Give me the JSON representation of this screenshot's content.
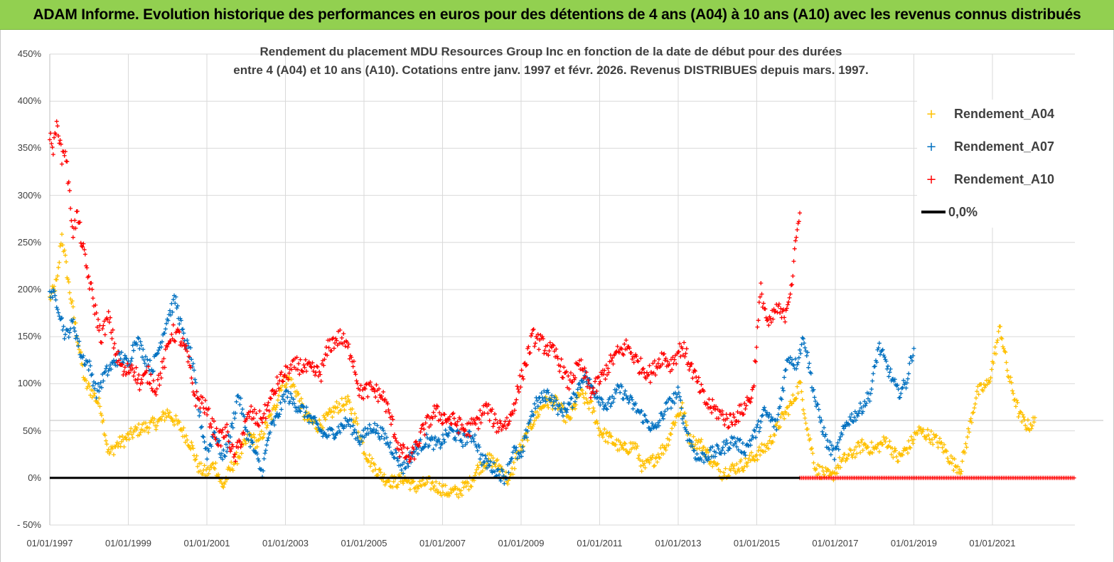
{
  "banner": {
    "title": "ADAM Informe. Evolution historique des performances en euros pour des détentions de 4 ans (A04) à 10 ans (A10) avec les revenus connus distribués"
  },
  "colors": {
    "banner_bg": "#92d050",
    "A04": "#ffc000",
    "A07": "#0070c0",
    "A10": "#ff0000",
    "zero": "#000000",
    "grid": "#d9d9d9"
  },
  "chart_data": {
    "type": "scatter",
    "title_line1": "Rendement du placement MDU Resources Group Inc en fonction de la date de début pour des durées",
    "title_line2": "entre 4 (A04) et 10 ans (A10).  Cotations entre janv. 1997 et févr. 2026. Revenus  DISTRIBUES depuis mars. 1997.",
    "xlabel": "",
    "ylabel": "",
    "xlim": [
      1997.0,
      2023.1
    ],
    "ylim": [
      -50,
      450
    ],
    "yticks": [
      -50,
      0,
      50,
      100,
      150,
      200,
      250,
      300,
      350,
      400,
      450
    ],
    "ytick_labels": [
      "- 50%",
      "0%",
      "50%",
      "100%",
      "150%",
      "200%",
      "250%",
      "300%",
      "350%",
      "400%",
      "450%"
    ],
    "xticks": [
      1997,
      1999,
      2001,
      2003,
      2005,
      2007,
      2009,
      2011,
      2013,
      2015,
      2017,
      2019,
      2021
    ],
    "xtick_labels": [
      "01/01/1997",
      "01/01/1999",
      "01/01/2001",
      "01/01/2003",
      "01/01/2005",
      "01/01/2007",
      "01/01/2009",
      "01/01/2011",
      "01/01/2013",
      "01/01/2015",
      "01/01/2017",
      "01/01/2019",
      "01/01/2021"
    ],
    "legend_position": "top-right",
    "series": [
      {
        "name": "Rendement_A04",
        "color": "#ffc000",
        "x": [
          1997.0,
          1997.2,
          1997.3,
          1997.5,
          1997.7,
          1997.9,
          1998.1,
          1998.3,
          1998.5,
          1998.7,
          1998.9,
          1999.2,
          1999.5,
          1999.8,
          2000.0,
          2000.3,
          2000.6,
          2000.8,
          2001.0,
          2001.2,
          2001.4,
          2001.6,
          2001.9,
          2002.1,
          2002.3,
          2002.5,
          2002.7,
          2002.9,
          2003.1,
          2003.3,
          2003.5,
          2003.8,
          2004.0,
          2004.3,
          2004.6,
          2004.8,
          2005.0,
          2005.2,
          2005.5,
          2005.8,
          2006.0,
          2006.3,
          2006.6,
          2006.9,
          2007.1,
          2007.4,
          2007.7,
          2007.9,
          2008.2,
          2008.5,
          2008.7,
          2008.9,
          2009.1,
          2009.3,
          2009.6,
          2009.9,
          2010.2,
          2010.5,
          2010.8,
          2011.0,
          2011.3,
          2011.6,
          2011.9,
          2012.1,
          2012.4,
          2012.7,
          2012.9,
          2013.1,
          2013.3,
          2013.6,
          2013.9,
          2014.1,
          2014.4,
          2014.7,
          2015.0,
          2015.3,
          2015.6,
          2015.9,
          2016.1,
          2016.3,
          2016.5,
          2016.7,
          2016.9,
          2017.1,
          2017.4,
          2017.7,
          2018.0,
          2018.3,
          2018.6,
          2018.9,
          2019.1,
          2019.4,
          2019.7,
          2020.0,
          2020.2,
          2020.4,
          2020.6,
          2020.9,
          2021.0,
          2021.2,
          2021.4,
          2021.7,
          2021.9,
          2022.1
        ],
        "y": [
          190,
          210,
          260,
          200,
          150,
          100,
          90,
          75,
          25,
          35,
          40,
          50,
          55,
          60,
          70,
          55,
          35,
          10,
          5,
          15,
          -10,
          10,
          30,
          45,
          35,
          55,
          70,
          100,
          105,
          90,
          65,
          55,
          60,
          75,
          80,
          60,
          30,
          15,
          0,
          -5,
          0,
          -10,
          -5,
          -10,
          -15,
          -15,
          -5,
          10,
          20,
          10,
          -5,
          25,
          40,
          60,
          80,
          80,
          60,
          90,
          75,
          50,
          40,
          30,
          35,
          10,
          20,
          35,
          60,
          75,
          40,
          35,
          15,
          5,
          10,
          15,
          25,
          35,
          60,
          80,
          100,
          50,
          10,
          5,
          0,
          15,
          25,
          35,
          30,
          40,
          20,
          35,
          50,
          45,
          35,
          15,
          10,
          50,
          90,
          100,
          120,
          160,
          110,
          65,
          55,
          60
        ]
      },
      {
        "name": "Rendement_A07",
        "color": "#0070c0",
        "x": [
          1997.0,
          1997.2,
          1997.4,
          1997.6,
          1997.8,
          1998.0,
          1998.2,
          1998.4,
          1998.6,
          1998.8,
          1999.0,
          1999.2,
          1999.4,
          1999.6,
          1999.8,
          2000.0,
          2000.2,
          2000.4,
          2000.6,
          2000.8,
          2001.0,
          2001.2,
          2001.4,
          2001.6,
          2001.8,
          2002.0,
          2002.2,
          2002.4,
          2002.6,
          2002.8,
          2003.0,
          2003.2,
          2003.5,
          2003.8,
          2004.0,
          2004.3,
          2004.6,
          2004.9,
          2005.2,
          2005.5,
          2005.8,
          2006.0,
          2006.3,
          2006.6,
          2006.9,
          2007.2,
          2007.5,
          2007.8,
          2008.0,
          2008.3,
          2008.6,
          2008.8,
          2009.0,
          2009.2,
          2009.4,
          2009.7,
          2010.0,
          2010.3,
          2010.6,
          2010.9,
          2011.2,
          2011.5,
          2011.8,
          2012.1,
          2012.4,
          2012.7,
          2013.0,
          2013.2,
          2013.5,
          2013.8,
          2014.1,
          2014.4,
          2014.7,
          2015.0,
          2015.2,
          2015.5,
          2015.8,
          2016.0,
          2016.2,
          2016.5,
          2016.8,
          2017.0,
          2017.3,
          2017.6,
          2017.9,
          2018.1,
          2018.4,
          2018.6,
          2018.8,
          2019.0
        ],
        "y": [
          200,
          185,
          150,
          165,
          130,
          120,
          90,
          110,
          120,
          130,
          120,
          150,
          130,
          115,
          140,
          170,
          190,
          150,
          130,
          70,
          25,
          50,
          20,
          45,
          90,
          50,
          30,
          5,
          50,
          65,
          90,
          80,
          70,
          55,
          45,
          50,
          60,
          40,
          55,
          45,
          25,
          10,
          30,
          40,
          35,
          50,
          40,
          45,
          20,
          10,
          0,
          30,
          20,
          60,
          80,
          90,
          70,
          80,
          110,
          90,
          75,
          95,
          80,
          65,
          50,
          75,
          90,
          50,
          20,
          25,
          30,
          40,
          30,
          50,
          70,
          55,
          130,
          120,
          150,
          80,
          35,
          25,
          60,
          70,
          90,
          140,
          110,
          90,
          100,
          140
        ]
      },
      {
        "name": "Rendement_A10",
        "color": "#ff0000",
        "x": [
          1997.0,
          1997.1,
          1997.2,
          1997.3,
          1997.4,
          1997.5,
          1997.6,
          1997.7,
          1997.9,
          1998.1,
          1998.3,
          1998.5,
          1998.7,
          1998.9,
          1999.1,
          1999.3,
          1999.5,
          1999.7,
          1999.9,
          2000.1,
          2000.3,
          2000.5,
          2000.7,
          2000.9,
          2001.1,
          2001.3,
          2001.5,
          2001.7,
          2001.9,
          2002.1,
          2002.3,
          2002.5,
          2002.8,
          2003.0,
          2003.3,
          2003.6,
          2003.9,
          2004.1,
          2004.4,
          2004.7,
          2004.9,
          2005.2,
          2005.5,
          2005.7,
          2005.9,
          2006.2,
          2006.5,
          2006.8,
          2007.0,
          2007.3,
          2007.6,
          2007.9,
          2008.1,
          2008.4,
          2008.7,
          2008.9,
          2009.1,
          2009.3,
          2009.6,
          2009.9,
          2010.2,
          2010.5,
          2010.8,
          2011.1,
          2011.4,
          2011.7,
          2012.0,
          2012.3,
          2012.6,
          2012.8,
          2013.1,
          2013.4,
          2013.7,
          2014.0,
          2014.3,
          2014.6,
          2014.9,
          2015.1,
          2015.3,
          2015.5,
          2015.7,
          2015.9,
          2016.0,
          2016.1
        ],
        "y": [
          360,
          350,
          380,
          340,
          350,
          300,
          260,
          280,
          230,
          190,
          150,
          170,
          130,
          110,
          120,
          100,
          110,
          95,
          120,
          155,
          150,
          130,
          85,
          80,
          60,
          40,
          50,
          20,
          45,
          70,
          60,
          70,
          100,
          110,
          120,
          115,
          110,
          140,
          150,
          130,
          90,
          95,
          85,
          60,
          30,
          20,
          50,
          70,
          65,
          60,
          50,
          60,
          75,
          55,
          60,
          90,
          120,
          150,
          140,
          130,
          100,
          120,
          90,
          110,
          130,
          140,
          120,
          110,
          130,
          120,
          140,
          110,
          80,
          70,
          60,
          70,
          90,
          200,
          160,
          180,
          170,
          210,
          250,
          290
        ]
      },
      {
        "name": "0,0%",
        "color": "#000000",
        "x": [
          1997.0,
          2016.1
        ],
        "y": [
          0,
          0
        ]
      }
    ],
    "zero_series": {
      "name": "Rendement_A10 (0%)",
      "color": "#ff0000",
      "x_start": 2016.1,
      "x_end": 2023.1,
      "y": 0
    },
    "legend_entries": [
      "Rendement_A04",
      "Rendement_A07",
      "Rendement_A10",
      "0,0%"
    ]
  }
}
